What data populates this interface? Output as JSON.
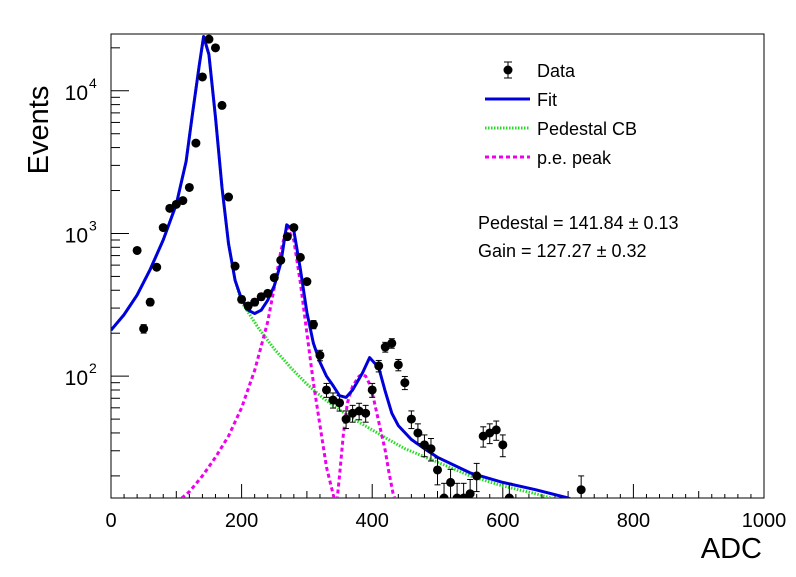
{
  "chart_data": {
    "type": "scatter",
    "xlabel": "ADC",
    "ylabel": "Events",
    "xlim": [
      0,
      1000
    ],
    "ylim": [
      14,
      25000
    ],
    "yscale": "log",
    "grid": false,
    "legend_position": "top-right",
    "x_ticks": [
      {
        "value": 0,
        "label": "0"
      },
      {
        "value": 200,
        "label": "200"
      },
      {
        "value": 400,
        "label": "400"
      },
      {
        "value": 600,
        "label": "600"
      },
      {
        "value": 800,
        "label": "800"
      },
      {
        "value": 1000,
        "label": "1000"
      }
    ],
    "y_ticks": [
      {
        "value": 100,
        "base": "10",
        "exp": "2"
      },
      {
        "value": 1000,
        "base": "10",
        "exp": "3"
      },
      {
        "value": 10000,
        "base": "10",
        "exp": "4"
      }
    ],
    "legend": [
      {
        "label": "Data",
        "style": "marker",
        "color": "#000000"
      },
      {
        "label": "Fit",
        "style": "line",
        "color": "#0000dd"
      },
      {
        "label": "Pedestal CB",
        "style": "dotted",
        "color": "#22dd22"
      },
      {
        "label": "p.e. peak",
        "style": "dashed",
        "color": "#ee00ee"
      }
    ],
    "annotations": [
      "Pedestal = 141.84 ± 0.13",
      "Gain = 127.27 ± 0.32"
    ],
    "series": [
      {
        "name": "Data",
        "kind": "points",
        "color": "#000000",
        "x": [
          40,
          50,
          60,
          70,
          80,
          90,
          100,
          110,
          120,
          130,
          140,
          150,
          160,
          170,
          180,
          190,
          200,
          210,
          220,
          230,
          240,
          250,
          260,
          270,
          280,
          290,
          300,
          310,
          320,
          330,
          340,
          350,
          360,
          370,
          380,
          390,
          400,
          410,
          420,
          430,
          440,
          450,
          460,
          470,
          480,
          490,
          500,
          510,
          520,
          530,
          540,
          550,
          560,
          570,
          580,
          590,
          600,
          610,
          720
        ],
        "y": [
          760,
          215,
          330,
          580,
          1100,
          1500,
          1600,
          1700,
          2100,
          4300,
          12500,
          23000,
          20000,
          7900,
          1800,
          590,
          345,
          310,
          330,
          360,
          380,
          490,
          650,
          950,
          1100,
          680,
          460,
          230,
          140,
          80,
          68,
          65,
          50,
          55,
          57,
          55,
          80,
          118,
          160,
          170,
          120,
          90,
          50,
          40,
          33,
          31,
          22,
          14,
          18,
          14,
          14,
          15,
          20,
          38,
          40,
          42,
          33,
          14,
          16
        ]
      },
      {
        "name": "Fit",
        "kind": "line",
        "color": "#0000dd",
        "x": [
          0,
          20,
          40,
          60,
          80,
          100,
          115,
          125,
          135,
          141.84,
          150,
          160,
          170,
          180,
          190,
          200,
          210,
          220,
          230,
          240,
          250,
          260,
          269,
          280,
          290,
          300,
          310,
          320,
          330,
          340,
          350,
          360,
          370,
          385,
          396,
          410,
          420,
          430,
          440,
          460,
          480,
          500,
          550,
          600,
          650,
          700,
          720
        ],
        "y": [
          210,
          270,
          370,
          560,
          900,
          1600,
          3200,
          7000,
          15000,
          24000,
          18000,
          6500,
          2100,
          850,
          470,
          345,
          290,
          275,
          290,
          340,
          430,
          620,
          1150,
          1050,
          560,
          280,
          170,
          125,
          100,
          86,
          73,
          71,
          80,
          105,
          135,
          115,
          78,
          55,
          45,
          36,
          31,
          27,
          21,
          18,
          16,
          14,
          13
        ]
      },
      {
        "name": "Pedestal CB",
        "kind": "dotted",
        "color": "#22dd22",
        "x": [
          0,
          20,
          40,
          60,
          80,
          100,
          115,
          125,
          135,
          141.84,
          150,
          160,
          170,
          180,
          190,
          200,
          225,
          250,
          275,
          300,
          325,
          350,
          375,
          400,
          425,
          450,
          500,
          550,
          600,
          650,
          700,
          720
        ],
        "y": [
          210,
          270,
          370,
          560,
          900,
          1600,
          3200,
          7000,
          15000,
          24000,
          18000,
          6500,
          2100,
          850,
          470,
          330,
          220,
          155,
          115,
          88,
          70,
          58,
          49,
          42,
          36,
          31,
          25,
          20,
          17,
          15,
          13,
          12.6
        ]
      },
      {
        "name": "p.e. peak",
        "kind": "dashed",
        "color": "#ee00ee",
        "x": [
          100,
          120,
          140,
          160,
          180,
          200,
          220,
          240,
          250,
          260,
          269,
          280,
          290,
          300,
          310,
          320,
          330,
          340,
          345,
          350,
          356,
          362,
          370,
          380,
          385,
          390,
          396,
          402,
          410,
          420,
          425,
          432,
          440
        ],
        "y": [
          13,
          15.5,
          20,
          27,
          38,
          60,
          110,
          240,
          420,
          750,
          1100,
          900,
          450,
          200,
          90,
          45,
          23,
          15,
          12,
          20,
          40,
          65,
          85,
          100,
          103,
          100,
          88,
          70,
          48,
          30,
          22,
          15,
          12
        ]
      }
    ]
  }
}
